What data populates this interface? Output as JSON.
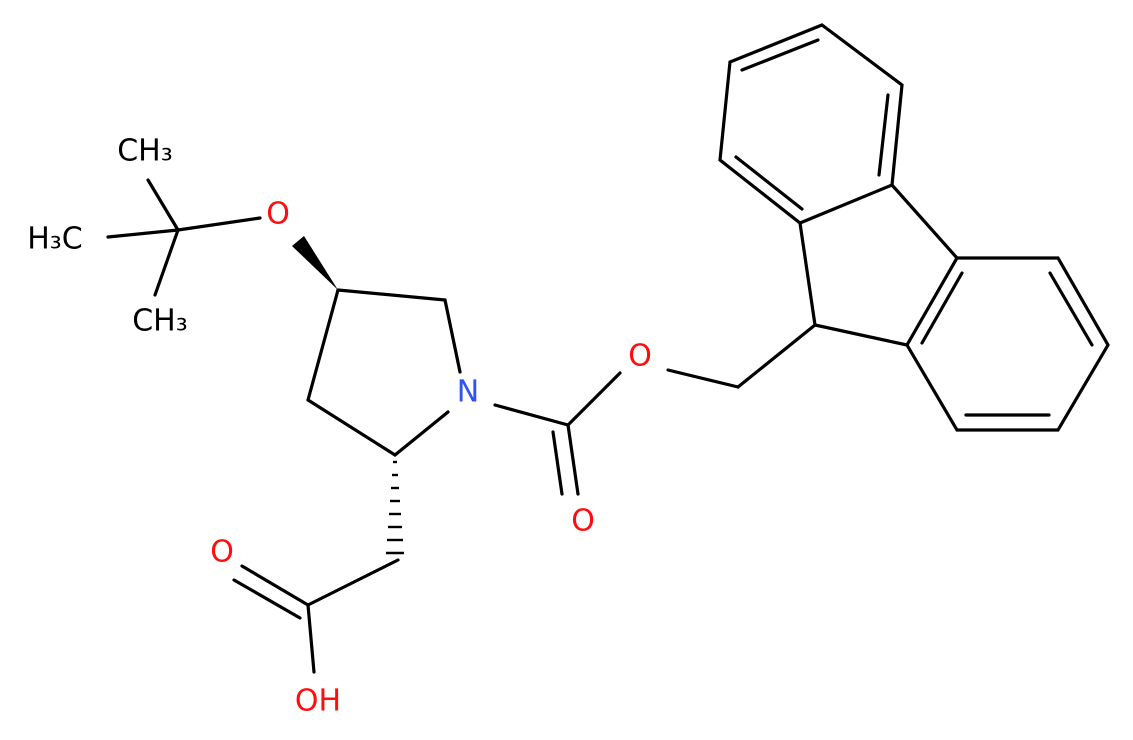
{
  "atoms": [
    {
      "label": "CH₃"
    },
    {
      "label": "H₃C"
    },
    {
      "label": "CH₃"
    },
    {
      "label": "O"
    },
    {
      "label": "N"
    },
    {
      "label": "O"
    },
    {
      "label": "O"
    },
    {
      "label": "O"
    },
    {
      "label": "OH"
    }
  ]
}
